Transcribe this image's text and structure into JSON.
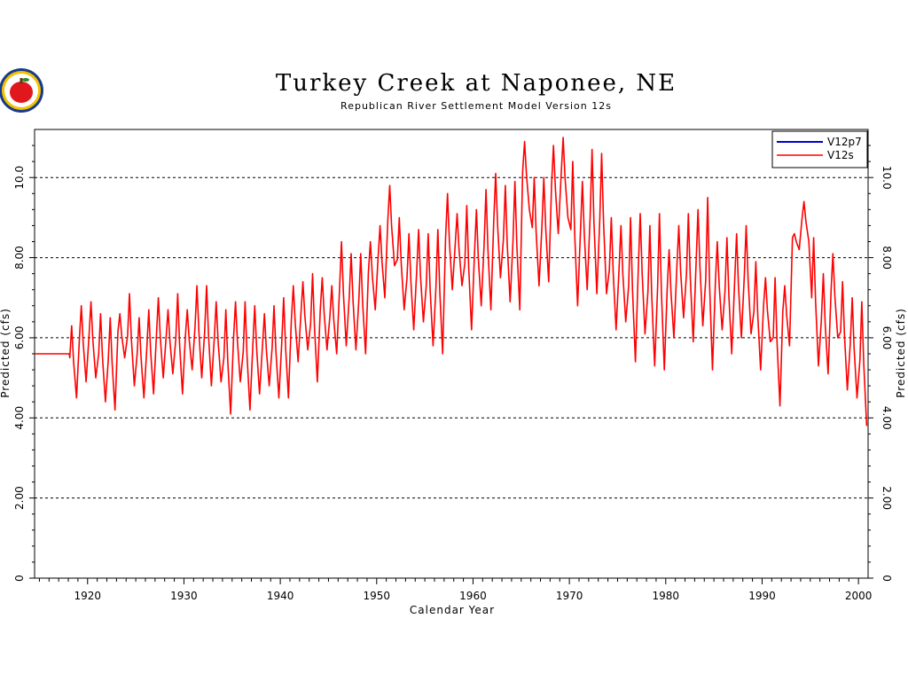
{
  "chart_data": {
    "type": "line",
    "title": "Turkey Creek at Naponee, NE",
    "subtitle": "Republican River Settlement Model Version 12s",
    "xlabel": "Calendar Year",
    "ylabel": "Predicted (cfs)",
    "ylabel_right": "Predicted (cfs)",
    "xlim": [
      1914.5,
      2001
    ],
    "ylim": [
      0,
      11.2
    ],
    "x_ticks": [
      1920,
      1930,
      1940,
      1950,
      1960,
      1970,
      1980,
      1990,
      2000
    ],
    "x_tick_labels": [
      "1920",
      "1930",
      "1940",
      "1950",
      "1960",
      "1970",
      "1980",
      "1990",
      "2000"
    ],
    "y_ticks": [
      0,
      2,
      4,
      6,
      8,
      10
    ],
    "y_tick_labels": [
      "0",
      "2.00",
      "4.00",
      "6.00",
      "8.00",
      "10.0"
    ],
    "grid": "horizontal-dashed",
    "legend_position": "top-right",
    "series": [
      {
        "name": "V12p7",
        "color": "#0000cc",
        "data": []
      },
      {
        "name": "V12s",
        "color": "#ff0000",
        "baseline": {
          "x": [
            1914.5,
            1918.1
          ],
          "y": 5.6
        },
        "annual": {
          "years": [
            1918,
            1919,
            1920,
            1921,
            1922,
            1923,
            1924,
            1925,
            1926,
            1927,
            1928,
            1929,
            1930,
            1931,
            1932,
            1933,
            1934,
            1935,
            1936,
            1937,
            1938,
            1939,
            1940,
            1941,
            1942,
            1943,
            1944,
            1945,
            1946,
            1947,
            1948,
            1949,
            1950,
            1951,
            1952,
            1953,
            1954,
            1955,
            1956,
            1957,
            1958,
            1959,
            1960,
            1961,
            1962,
            1963,
            1964,
            1965,
            1966,
            1967,
            1968,
            1969,
            1970,
            1971,
            1972,
            1973,
            1974,
            1975,
            1976,
            1977,
            1978,
            1979,
            1980,
            1981,
            1982,
            1983,
            1984,
            1985,
            1986,
            1987,
            1988,
            1989,
            1990,
            1991,
            1992,
            1993,
            1994,
            1995,
            1996,
            1997,
            1998,
            1999,
            2000
          ],
          "peaks": [
            6.3,
            6.8,
            6.9,
            6.6,
            6.5,
            6.6,
            7.1,
            6.5,
            6.7,
            7.0,
            6.7,
            7.1,
            6.7,
            7.3,
            7.3,
            6.9,
            6.7,
            6.9,
            6.9,
            6.8,
            6.6,
            6.8,
            7.0,
            7.3,
            7.4,
            7.6,
            7.5,
            7.3,
            8.4,
            8.1,
            8.1,
            8.4,
            8.8,
            9.8,
            9.0,
            8.6,
            8.7,
            8.6,
            8.7,
            9.6,
            9.1,
            9.3,
            9.2,
            9.7,
            10.1,
            9.8,
            9.9,
            10.9,
            10.0,
            10.0,
            10.8,
            11.0,
            10.4,
            9.9,
            10.7,
            10.6,
            9.0,
            8.8,
            9.0,
            9.1,
            8.8,
            9.1,
            8.2,
            8.8,
            9.1,
            9.2,
            9.5,
            8.4,
            8.5,
            8.6,
            8.8,
            7.9,
            7.5,
            7.5,
            7.3,
            8.6,
            9.4,
            8.5,
            7.6,
            8.1,
            7.4,
            7.0,
            6.9
          ],
          "troughs": [
            4.5,
            4.9,
            5.0,
            4.4,
            4.2,
            5.5,
            4.8,
            4.5,
            4.6,
            5.0,
            5.1,
            4.6,
            5.2,
            5.0,
            4.8,
            4.9,
            4.1,
            4.9,
            4.2,
            4.6,
            4.8,
            4.5,
            4.5,
            5.4,
            5.7,
            4.9,
            5.7,
            5.6,
            5.8,
            5.7,
            5.6,
            6.7,
            7.0,
            7.8,
            6.7,
            6.2,
            6.4,
            5.8,
            5.6,
            7.2,
            7.3,
            6.2,
            6.8,
            6.7,
            7.5,
            6.9,
            6.7,
            9.2,
            7.3,
            7.4,
            8.6,
            9.0,
            6.8,
            7.2,
            7.1,
            7.1,
            6.2,
            6.4,
            5.4,
            6.1,
            5.3,
            5.2,
            6.0,
            6.5,
            5.9,
            6.3,
            5.2,
            6.2,
            5.6,
            6.0,
            6.1,
            5.2,
            5.9,
            4.3,
            5.8,
            8.2,
            8.4,
            5.3,
            5.1,
            6.0,
            4.7,
            4.5,
            3.8
          ]
        }
      }
    ],
    "legend": [
      {
        "label": "V12p7",
        "color": "#0000cc"
      },
      {
        "label": "V12s",
        "color": "#ff0000"
      }
    ]
  }
}
